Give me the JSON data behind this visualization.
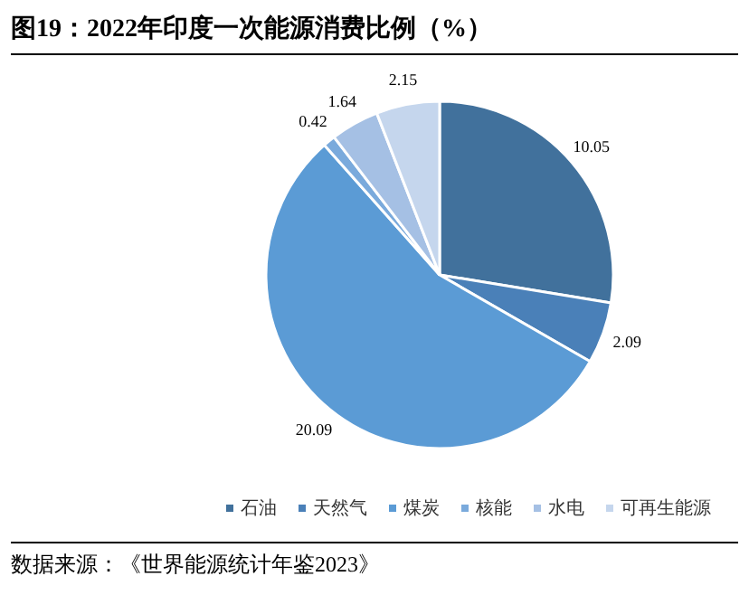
{
  "chart_data": {
    "type": "pie",
    "title": "图19：2022年印度一次能源消费比例（%）",
    "categories": [
      "石油",
      "天然气",
      "煤炭",
      "核能",
      "水电",
      "可再生能源"
    ],
    "values": [
      10.05,
      2.09,
      20.09,
      0.42,
      1.64,
      2.15
    ],
    "colors": [
      "#41719c",
      "#4a80b8",
      "#5b9bd5",
      "#7aaadc",
      "#a5c0e4",
      "#c5d6ed"
    ],
    "data_labels": true,
    "legend": "bottom",
    "annotations": [
      "数据来源：《世界能源统计年鉴2023》"
    ]
  }
}
